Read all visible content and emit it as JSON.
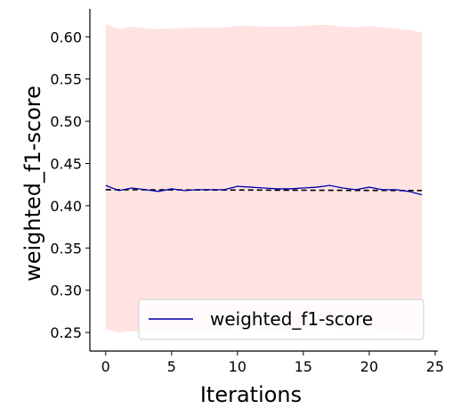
{
  "chart_data": {
    "type": "line",
    "xlabel": "Iterations",
    "ylabel": "weighted_f1-score",
    "xlim": [
      -1.2,
      25.2
    ],
    "ylim": [
      0.228,
      0.633
    ],
    "xticks": [
      0,
      5,
      10,
      15,
      20,
      25
    ],
    "yticks": [
      0.25,
      0.3,
      0.35,
      0.4,
      0.45,
      0.5,
      0.55,
      0.6
    ],
    "ytick_labels": [
      "0.25",
      "0.30",
      "0.35",
      "0.40",
      "0.45",
      "0.50",
      "0.55",
      "0.60"
    ],
    "grid": false,
    "legend_position": "lower-right",
    "x": [
      0,
      1,
      2,
      3,
      4,
      5,
      6,
      7,
      8,
      9,
      10,
      11,
      12,
      13,
      14,
      15,
      16,
      17,
      18,
      19,
      20,
      21,
      22,
      23,
      24
    ],
    "series": [
      {
        "name": "weighted_f1-score",
        "color": "#0000aa",
        "values": [
          0.424,
          0.418,
          0.421,
          0.419,
          0.417,
          0.42,
          0.418,
          0.419,
          0.419,
          0.419,
          0.423,
          0.422,
          0.421,
          0.42,
          0.42,
          0.421,
          0.422,
          0.424,
          0.421,
          0.419,
          0.422,
          0.419,
          0.419,
          0.417,
          0.413
        ]
      }
    ],
    "trend": {
      "style": "dashed",
      "color": "#000000",
      "start": [
        0,
        0.419
      ],
      "end": [
        24,
        0.418
      ]
    },
    "band": {
      "color": "#ffcccc",
      "upper": [
        0.615,
        0.609,
        0.612,
        0.61,
        0.609,
        0.61,
        0.61,
        0.611,
        0.611,
        0.611,
        0.613,
        0.613,
        0.612,
        0.612,
        0.612,
        0.613,
        0.614,
        0.614,
        0.612,
        0.611,
        0.613,
        0.611,
        0.61,
        0.608,
        0.605
      ],
      "lower": [
        0.254,
        0.25,
        0.252,
        0.25,
        0.249,
        0.252,
        0.251,
        0.252,
        0.252,
        0.252,
        0.254,
        0.254,
        0.252,
        0.252,
        0.252,
        0.253,
        0.254,
        0.255,
        0.254,
        0.253,
        0.254,
        0.252,
        0.251,
        0.249,
        0.247
      ]
    }
  }
}
